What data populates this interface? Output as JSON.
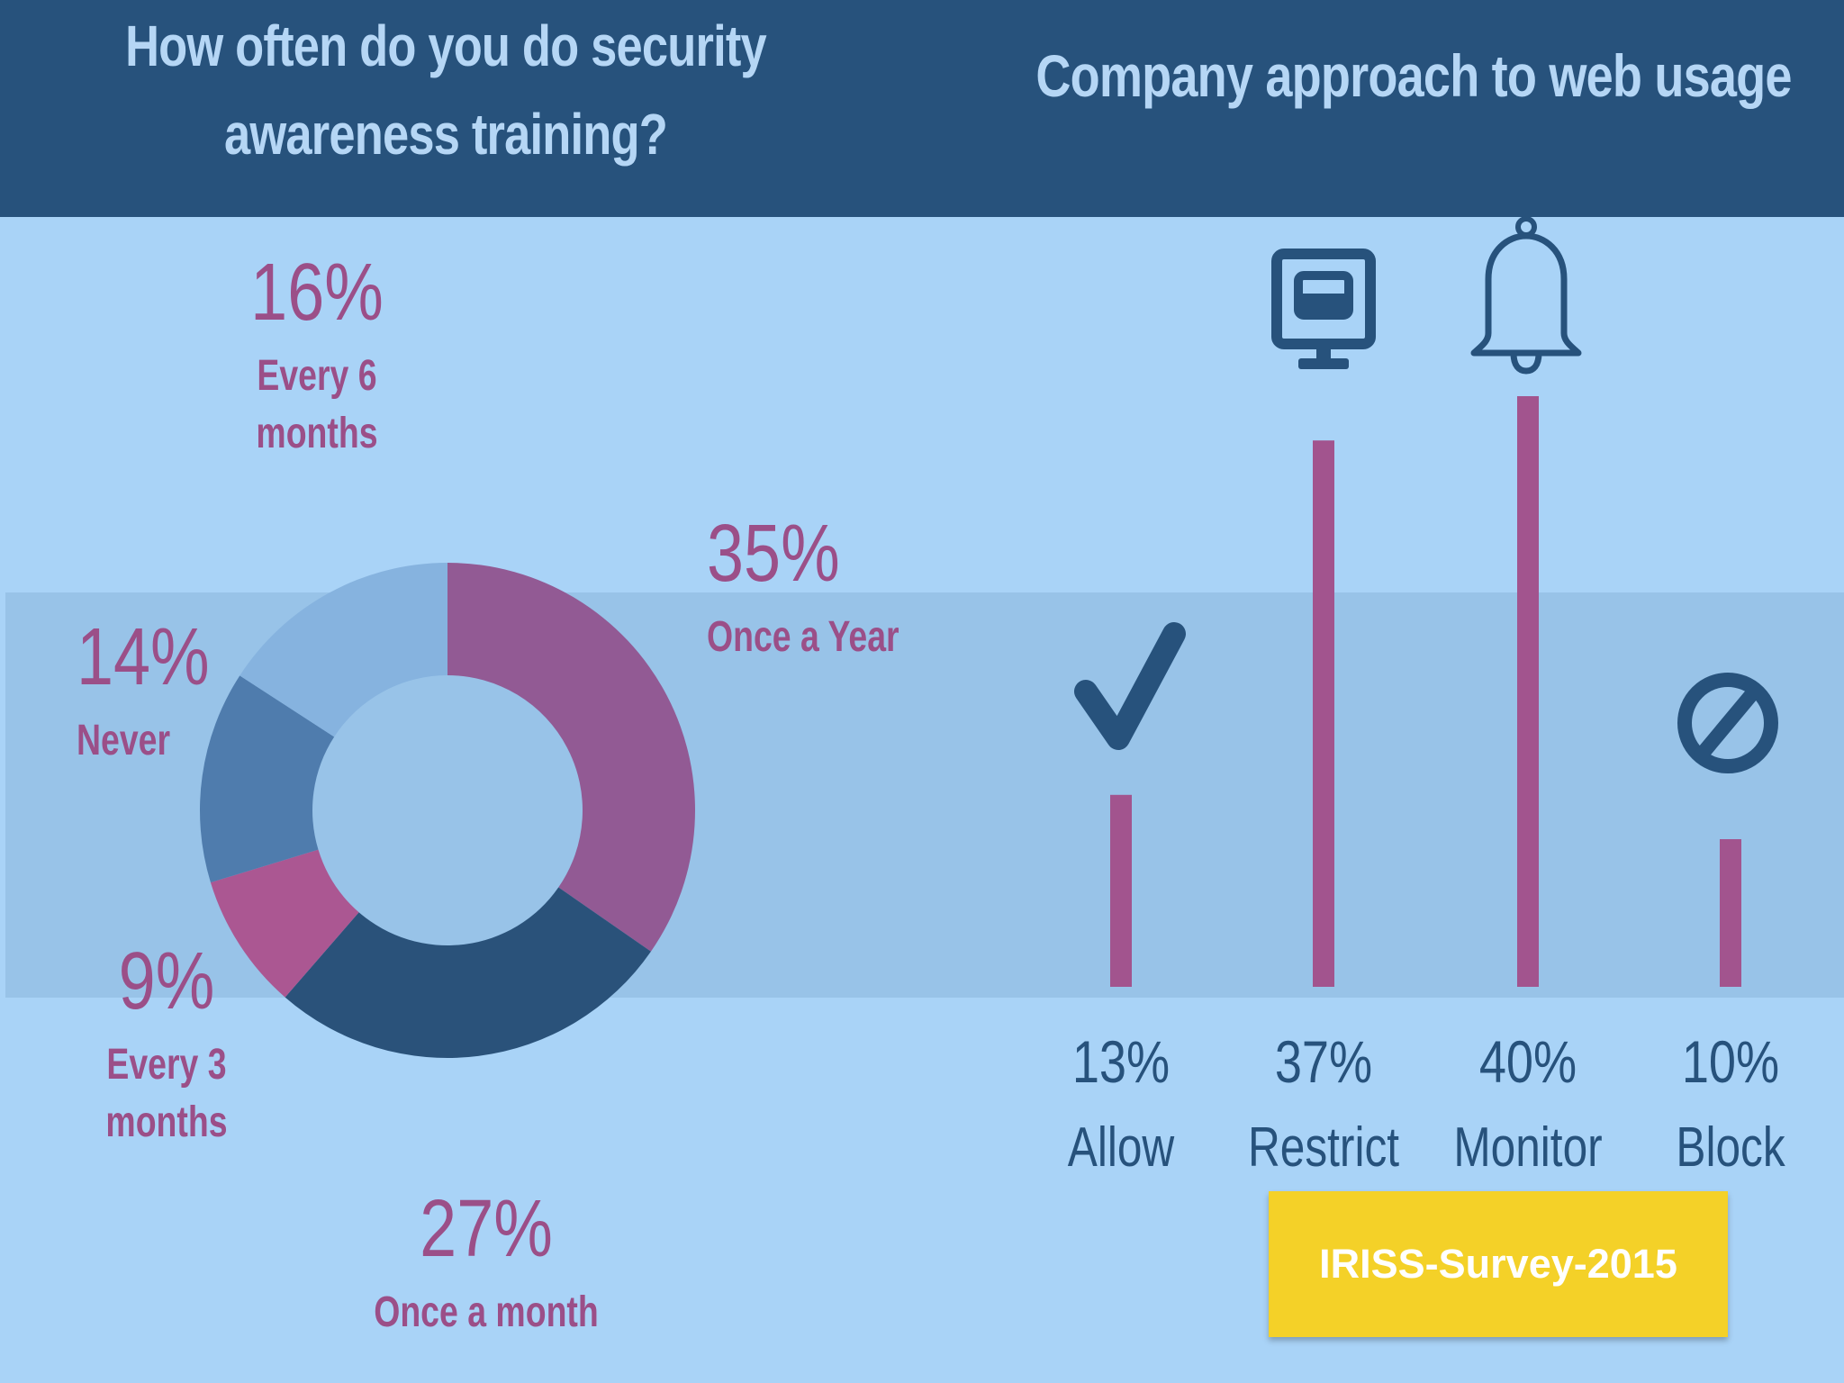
{
  "chart_data": [
    {
      "type": "pie",
      "title": "How often do you do security awareness training?",
      "slices": [
        {
          "name": "Once a Year",
          "value": 35,
          "label": "35%",
          "color": "#925a94"
        },
        {
          "name": "Once a month",
          "value": 27,
          "label": "27%",
          "color": "#2a527a"
        },
        {
          "name": "Every 3 months",
          "value": 9,
          "label": "9%",
          "color": "#ab5792"
        },
        {
          "name": "Never",
          "value": 14,
          "label": "14%",
          "color": "#4f7cad"
        },
        {
          "name": "Every 6 months",
          "value": 16,
          "label": "16%",
          "color": "#86b3df"
        }
      ]
    },
    {
      "type": "bar",
      "title": "Company approach to web usage",
      "categories": [
        "Allow",
        "Restrict",
        "Monitor",
        "Block"
      ],
      "values": [
        13,
        37,
        40,
        10
      ],
      "labels": [
        "13%",
        "37%",
        "40%",
        "10%"
      ],
      "icons": [
        "check-icon",
        "monitor-icon",
        "bell-icon",
        "block-icon"
      ],
      "bar_color": "#a2548e",
      "ylim": [
        0,
        40
      ]
    }
  ],
  "text_colors": {
    "pie_labels": "#9b4f88",
    "bar_labels": "#27527c",
    "title": "#b5d6f5"
  },
  "source_label": "IRISS-Survey-2015"
}
